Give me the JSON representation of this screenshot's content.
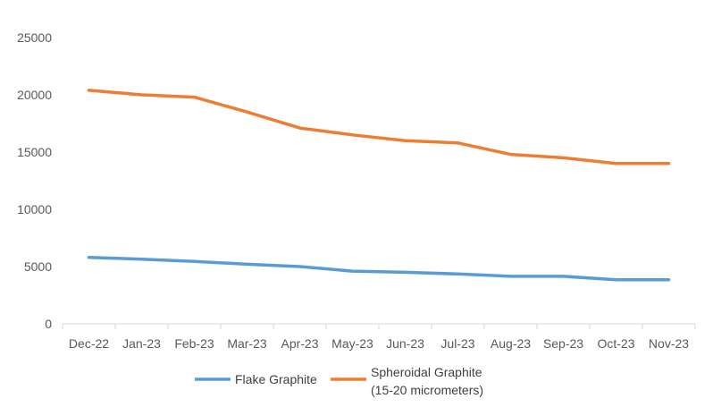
{
  "chart_data": {
    "type": "line",
    "categories": [
      "Dec-22",
      "Jan-23",
      "Feb-23",
      "Mar-23",
      "Apr-23",
      "May-23",
      "Jun-23",
      "Jul-23",
      "Aug-23",
      "Sep-23",
      "Oct-23",
      "Nov-23"
    ],
    "series": [
      {
        "name": "Flake Graphite",
        "color": "#5b9bd5",
        "values": [
          5800,
          5650,
          5450,
          5200,
          5000,
          4600,
          4500,
          4350,
          4150,
          4150,
          3850,
          3850
        ]
      },
      {
        "name": "Spheroidal Graphite (15-20 micrometers)",
        "name_lines": [
          "Spheroidal Graphite",
          "(15-20 micrometers)"
        ],
        "color": "#ed7d31",
        "values": [
          20400,
          20000,
          19800,
          18500,
          17100,
          16500,
          16000,
          15800,
          14800,
          14500,
          14000,
          14000
        ]
      }
    ],
    "yticks": [
      "0",
      "5000",
      "10000",
      "15000",
      "20000",
      "25000"
    ],
    "ylim": [
      0,
      25000
    ],
    "title": "",
    "xlabel": "",
    "ylabel": "",
    "grid": false,
    "legend_position": "bottom"
  }
}
